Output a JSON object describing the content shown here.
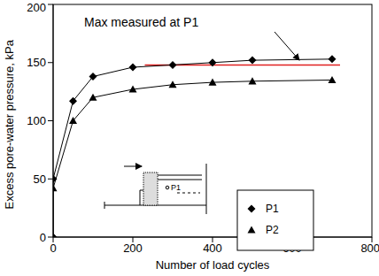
{
  "chart_data": {
    "type": "line",
    "xlabel": "Number of load cycles",
    "ylabel": "Excess pore-water pressure, kPa",
    "x": [
      0,
      0,
      50,
      100,
      200,
      300,
      400,
      500,
      700
    ],
    "series": [
      {
        "name": "P1",
        "color": "#000000",
        "marker": "diamond",
        "values": [
          0,
          50,
          117,
          138,
          146,
          148,
          150,
          152,
          153
        ]
      },
      {
        "name": "P2",
        "color": "#000000",
        "marker": "triangle",
        "values": [
          0,
          42,
          100,
          120,
          127,
          131,
          133,
          134,
          135
        ]
      }
    ],
    "xlim": [
      0,
      800
    ],
    "xticks": [
      0,
      200,
      400,
      600,
      800
    ],
    "ylim": [
      0,
      200
    ],
    "yticks": [
      0,
      50,
      100,
      150,
      200
    ],
    "grid": false,
    "legend": "lower right",
    "annotations": [
      {
        "text": "Max measured at P1"
      }
    ],
    "reference_line": {
      "y": 148,
      "x": [
        230,
        720
      ],
      "color": "#e02020"
    },
    "inset_label": "P1"
  }
}
